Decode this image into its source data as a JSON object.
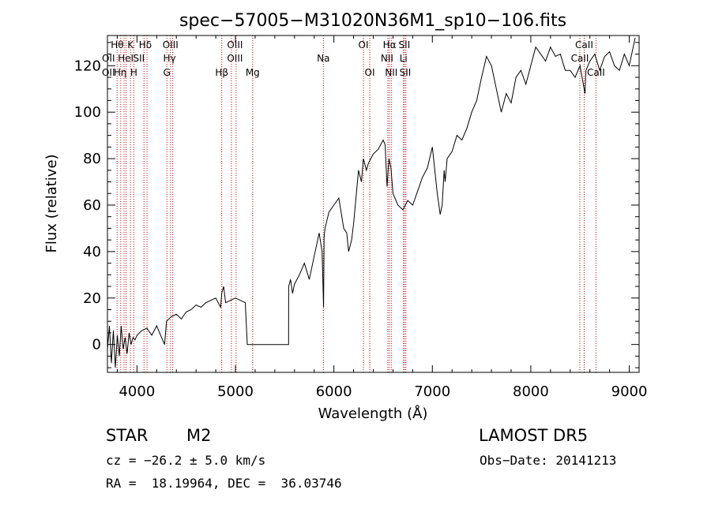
{
  "chart_data": {
    "type": "line",
    "title": "spec−57005−M31020N36M1_sp10−106.fits",
    "xlabel": "Wavelength (Å)",
    "ylabel": "Flux (relative)",
    "xlim": [
      3700,
      9100
    ],
    "ylim": [
      -12,
      133
    ],
    "xticks": [
      4000,
      5000,
      6000,
      7000,
      8000,
      9000
    ],
    "yticks": [
      0,
      20,
      40,
      60,
      80,
      100,
      120
    ],
    "grid": false,
    "colors": {
      "line": "#000000",
      "markers": "#c00000"
    },
    "series": [
      {
        "x": [
          3700,
          3720,
          3740,
          3760,
          3780,
          3800,
          3820,
          3840,
          3860,
          3880,
          3900,
          3920,
          3940,
          3960,
          3980,
          4000,
          4050,
          4100,
          4150,
          4200,
          4250,
          4280,
          4300,
          4350,
          4400,
          4450,
          4500,
          4550,
          4600,
          4650,
          4700,
          4750,
          4800,
          4850,
          4860,
          4880,
          4900,
          4950,
          5000,
          5050,
          5100,
          5120,
          5121,
          5300,
          5500,
          5540,
          5541,
          5560,
          5580,
          5600,
          5650,
          5700,
          5750,
          5800,
          5850,
          5880,
          5895,
          5900,
          5910,
          5950,
          6000,
          6050,
          6100,
          6130,
          6150,
          6180,
          6200,
          6250,
          6280,
          6300,
          6330,
          6350,
          6400,
          6450,
          6500,
          6520,
          6540,
          6560,
          6580,
          6600,
          6650,
          6700,
          6750,
          6800,
          6850,
          6900,
          6950,
          7000,
          7050,
          7080,
          7100,
          7120,
          7130,
          7150,
          7200,
          7250,
          7300,
          7350,
          7400,
          7450,
          7500,
          7550,
          7600,
          7650,
          7700,
          7750,
          7800,
          7850,
          7900,
          7950,
          8000,
          8050,
          8100,
          8150,
          8200,
          8250,
          8300,
          8350,
          8400,
          8450,
          8500,
          8550,
          8560,
          8600,
          8650,
          8700,
          8750,
          8800,
          8850,
          8900,
          8950,
          9000,
          9040,
          9060
        ],
        "y": [
          -2,
          8,
          -8,
          6,
          -10,
          4,
          -5,
          8,
          -2,
          3,
          -4,
          5,
          0,
          3,
          2,
          4,
          6,
          7,
          4,
          8,
          3,
          0,
          10,
          12,
          13,
          11,
          14,
          15,
          17,
          16,
          18,
          19,
          20,
          16,
          22,
          25,
          18,
          19,
          20,
          19,
          18,
          0,
          0,
          0,
          0,
          0,
          25,
          28,
          22,
          26,
          30,
          35,
          28,
          38,
          48,
          40,
          16,
          46,
          50,
          57,
          60,
          63,
          50,
          48,
          40,
          45,
          52,
          75,
          70,
          80,
          75,
          78,
          82,
          84,
          88,
          86,
          68,
          80,
          76,
          65,
          60,
          58,
          62,
          60,
          66,
          72,
          76,
          85,
          65,
          56,
          60,
          75,
          70,
          80,
          83,
          90,
          88,
          93,
          100,
          105,
          115,
          124,
          120,
          110,
          100,
          108,
          104,
          115,
          118,
          112,
          120,
          128,
          125,
          122,
          128,
          124,
          125,
          118,
          118,
          115,
          120,
          108,
          118,
          122,
          125,
          118,
          124,
          126,
          120,
          118,
          125,
          120,
          128,
          132
        ]
      }
    ],
    "line_ids": [
      {
        "x": 3798,
        "label": "Hθ"
      },
      {
        "x": 3835,
        "label": "Hη"
      },
      {
        "x": 3869,
        "label": ""
      },
      {
        "x": 3889,
        "label": "HeI"
      },
      {
        "x": 3934,
        "label": "K"
      },
      {
        "x": 3968,
        "label": "H"
      },
      {
        "x": 4071,
        "label": "SII"
      },
      {
        "x": 4102,
        "label": "Hδ"
      },
      {
        "x": 4304,
        "label": "G"
      },
      {
        "x": 4340,
        "label": "Hγ"
      },
      {
        "x": 4363,
        "label": "OIII"
      },
      {
        "x": 4861,
        "label": "Hβ"
      },
      {
        "x": 4959,
        "label": "OIII"
      },
      {
        "x": 5007,
        "label": "OIII"
      },
      {
        "x": 5175,
        "label": "Mg"
      },
      {
        "x": 5893,
        "label": "Na"
      },
      {
        "x": 6300,
        "label": "OI"
      },
      {
        "x": 6364,
        "label": "OI"
      },
      {
        "x": 6548,
        "label": "NII"
      },
      {
        "x": 6563,
        "label": "Hα"
      },
      {
        "x": 6583,
        "label": "NII"
      },
      {
        "x": 6707,
        "label": "Li"
      },
      {
        "x": 6716,
        "label": "SII"
      },
      {
        "x": 6731,
        "label": "SII"
      },
      {
        "x": 8498,
        "label": "CaII"
      },
      {
        "x": 8542,
        "label": "CaII"
      },
      {
        "x": 8662,
        "label": "CaII"
      }
    ],
    "line_label_texts": [
      {
        "text": "Hθ",
        "x": 3800,
        "row": 1
      },
      {
        "text": "K",
        "x": 3934,
        "row": 1
      },
      {
        "text": "Hδ",
        "x": 4085,
        "row": 1
      },
      {
        "text": "OIII",
        "x": 4340,
        "row": 1
      },
      {
        "text": "OIII",
        "x": 4995,
        "row": 1
      },
      {
        "text": "OI",
        "x": 6300,
        "row": 1
      },
      {
        "text": "Hα",
        "x": 6565,
        "row": 1
      },
      {
        "text": "SII",
        "x": 6716,
        "row": 1
      },
      {
        "text": "CaII",
        "x": 8542,
        "row": 1
      },
      {
        "text": "OII",
        "x": 3710,
        "row": 2
      },
      {
        "text": "HeI",
        "x": 3885,
        "row": 2
      },
      {
        "text": "SII",
        "x": 4020,
        "row": 2
      },
      {
        "text": "Hγ",
        "x": 4330,
        "row": 2
      },
      {
        "text": "OIII",
        "x": 4995,
        "row": 2
      },
      {
        "text": "Na",
        "x": 5893,
        "row": 2
      },
      {
        "text": "NII",
        "x": 6540,
        "row": 2
      },
      {
        "text": "Li",
        "x": 6707,
        "row": 2
      },
      {
        "text": "CaII",
        "x": 8498,
        "row": 2
      },
      {
        "text": "OII",
        "x": 3710,
        "row": 3
      },
      {
        "text": "Hη",
        "x": 3830,
        "row": 3
      },
      {
        "text": "H",
        "x": 3968,
        "row": 3
      },
      {
        "text": "G",
        "x": 4304,
        "row": 3
      },
      {
        "text": "Hβ",
        "x": 4861,
        "row": 3
      },
      {
        "text": "Mg",
        "x": 5175,
        "row": 3
      },
      {
        "text": "OI",
        "x": 6364,
        "row": 3
      },
      {
        "text": "NII",
        "x": 6583,
        "row": 3
      },
      {
        "text": "SII",
        "x": 6725,
        "row": 3
      },
      {
        "text": "CaII",
        "x": 8662,
        "row": 3
      }
    ]
  },
  "footer": {
    "object_class": "STAR",
    "subclass": "M2",
    "survey": "LAMOST DR5",
    "redshift": "cz = −26.2 ± 5.0 km/s",
    "obs_date": "Obs−Date: 20141213",
    "coords": "RA =  18.19964, DEC =  36.03746"
  }
}
